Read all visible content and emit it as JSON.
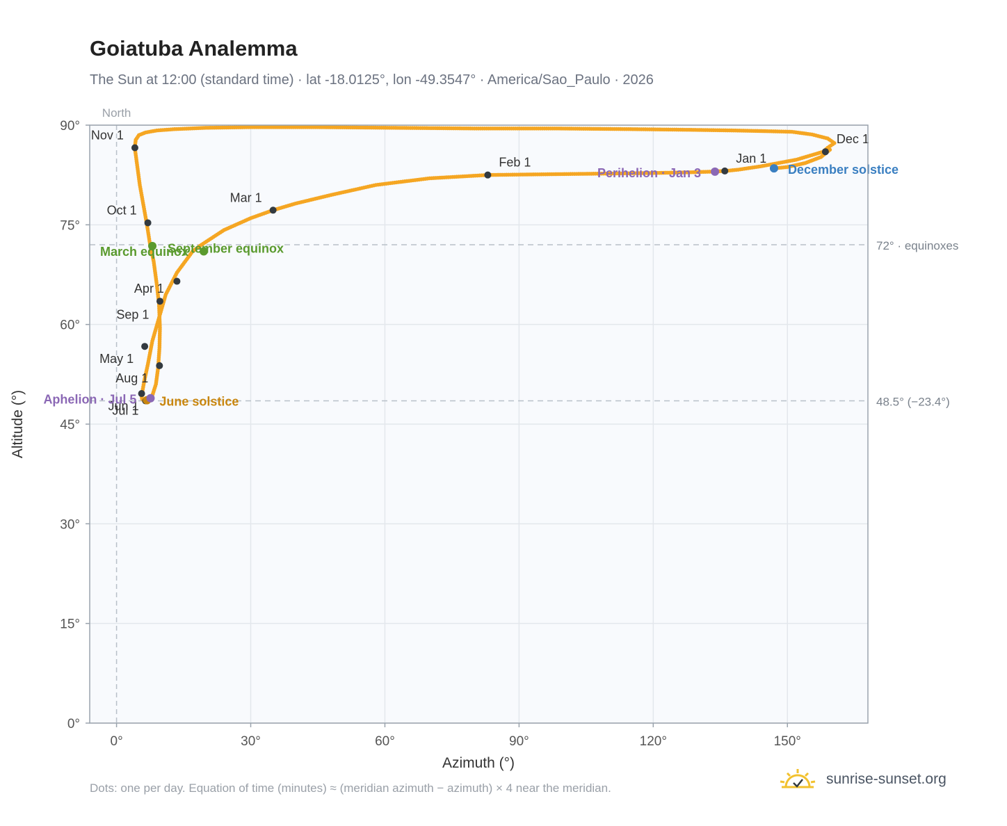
{
  "title": "Goiatuba Analemma",
  "subtitle": "The Sun at 12:00 (standard time) · lat -18.0125°, lon -49.3547° · America/Sao_Paulo · 2026",
  "footnote": "Dots: one per day. Equation of time (minutes) ≈ (meridian azimuth − azimuth) × 4 near the meridian.",
  "brand": {
    "text": "sunrise-sunset.org",
    "icon": "sun-logo-icon"
  },
  "colors": {
    "path": "#f5a623",
    "month_marker": "#333a40",
    "equinox": "#5a9a2e",
    "june_solstice": "#c8860f",
    "december_solstice": "#3a7fc1",
    "apsis": "#8b68b5",
    "plot_bg": "#f8fafd",
    "grid": "#e3e7ec",
    "axis": "#9aa3ad"
  },
  "chart_data": {
    "type": "scatter",
    "xlabel": "Azimuth (°)",
    "ylabel": "Altitude (°)",
    "xlim": [
      -6,
      168
    ],
    "ylim": [
      0,
      90
    ],
    "x_ticks": [
      "0°",
      "30°",
      "60°",
      "90°",
      "120°",
      "150°"
    ],
    "y_ticks": [
      "0°",
      "15°",
      "30°",
      "45°",
      "60°",
      "75°",
      "90°"
    ],
    "grid": true,
    "north_label": "North",
    "reference_lines": [
      {
        "y": 72.0,
        "label": "72° · equinoxes"
      },
      {
        "y": 48.5,
        "label": "48.5° (−23.4°)"
      }
    ],
    "path_series": {
      "name": "",
      "x": [
        147.0,
        150.0,
        154.0,
        157.5,
        159.5,
        158.0,
        152.0,
        144.0,
        139.0,
        136.0,
        133.0,
        128.0,
        120.0,
        108.0,
        95.0,
        83.0,
        70.0,
        58.0,
        48.0,
        40.0,
        35.0,
        30.0,
        24.0,
        19.0,
        17.0,
        13.5,
        11.0,
        9.5,
        8.0,
        7.0,
        6.2,
        5.8,
        5.6,
        5.7,
        6.2,
        7.2,
        8.0,
        8.8,
        9.3,
        9.6,
        9.7,
        9.5,
        9.0,
        8.3,
        7.5,
        6.8,
        6.0,
        5.2,
        4.6,
        4.2,
        4.1,
        4.3,
        5.0,
        6.5,
        9.0,
        13.0,
        20.0,
        30.0,
        45.0,
        62.0,
        80.0,
        98.0,
        115.0,
        128.0,
        138.0,
        145.0,
        151.0,
        155.5,
        159.0,
        160.5,
        159.0,
        158.0
      ],
      "y": [
        83.5,
        83.7,
        84.3,
        85.2,
        86.3,
        86.0,
        84.8,
        83.8,
        83.3,
        83.1,
        83.0,
        82.9,
        82.8,
        82.7,
        82.6,
        82.5,
        82.0,
        81.0,
        79.5,
        78.2,
        77.2,
        76.0,
        74.2,
        72.0,
        71.0,
        67.8,
        64.5,
        61.0,
        57.5,
        54.0,
        51.5,
        50.0,
        49.3,
        48.8,
        48.5,
        48.6,
        49.3,
        51.0,
        53.5,
        56.5,
        59.5,
        63.0,
        66.0,
        69.5,
        72.0,
        75.0,
        78.0,
        81.0,
        84.0,
        86.0,
        86.8,
        87.8,
        88.5,
        88.9,
        89.2,
        89.4,
        89.6,
        89.7,
        89.7,
        89.6,
        89.5,
        89.5,
        89.4,
        89.3,
        89.2,
        89.1,
        89.0,
        88.6,
        88.0,
        87.3,
        86.6,
        86.0
      ]
    },
    "month_markers": [
      {
        "label": "Jan 1",
        "x": 136.0,
        "y": 83.1,
        "dx": 16,
        "dy": -12,
        "anchor": "start"
      },
      {
        "label": "Feb 1",
        "x": 83.0,
        "y": 82.5,
        "dx": 16,
        "dy": -12,
        "anchor": "start"
      },
      {
        "label": "Mar 1",
        "x": 35.0,
        "y": 77.2,
        "dx": -16,
        "dy": -12,
        "anchor": "end"
      },
      {
        "label": "Apr 1",
        "x": 9.7,
        "y": 63.5,
        "dx": 6,
        "dy": -12,
        "anchor": "end"
      },
      {
        "label": "May 1",
        "x": 6.3,
        "y": 56.7,
        "dx": -16,
        "dy": 24,
        "anchor": "end"
      },
      {
        "label": "Jun 1",
        "x": 5.6,
        "y": 49.6,
        "dx": -4,
        "dy": 24,
        "anchor": "end"
      },
      {
        "label": "Jul 1",
        "x": 6.5,
        "y": 48.5,
        "dx": -10,
        "dy": 20,
        "anchor": "end"
      },
      {
        "label": "Aug 1",
        "x": 9.6,
        "y": 53.8,
        "dx": -16,
        "dy": 24,
        "anchor": "end"
      },
      {
        "label": "Sep 1",
        "x": 13.5,
        "y": 66.5,
        "dx": -40,
        "dy": 54,
        "anchor": "end"
      },
      {
        "label": "Oct 1",
        "x": 7.0,
        "y": 75.3,
        "dx": -16,
        "dy": -12,
        "anchor": "end"
      },
      {
        "label": "Nov 1",
        "x": 4.1,
        "y": 86.6,
        "dx": -16,
        "dy": -12,
        "anchor": "end"
      },
      {
        "label": "Dec 1",
        "x": 158.5,
        "y": 86.0,
        "dx": 16,
        "dy": -12,
        "anchor": "start"
      }
    ],
    "events": [
      {
        "label": "March equinox",
        "x": 8.0,
        "y": 71.8,
        "color_key": "equinox",
        "dx": 52,
        "dy": 14,
        "anchor": "end"
      },
      {
        "label": "September equinox",
        "x": 19.5,
        "y": 71.0,
        "color_key": "equinox",
        "dx": -52,
        "dy": 2,
        "anchor": "start"
      },
      {
        "label": "June solstice",
        "x": 6.8,
        "y": 48.6,
        "color_key": "june_solstice",
        "dx": 18,
        "dy": 8,
        "anchor": "start"
      },
      {
        "label": "December solstice",
        "x": 147.0,
        "y": 83.5,
        "color_key": "december_solstice",
        "dx": 20,
        "dy": 8,
        "anchor": "start"
      },
      {
        "label": "Perihelion · Jan 3",
        "x": 133.8,
        "y": 83.0,
        "color_key": "apsis",
        "dx": -20,
        "dy": 8,
        "anchor": "end"
      },
      {
        "label": "Aphelion · Jul 5",
        "x": 7.6,
        "y": 48.9,
        "color_key": "apsis",
        "dx": -20,
        "dy": 8,
        "anchor": "end"
      }
    ]
  }
}
